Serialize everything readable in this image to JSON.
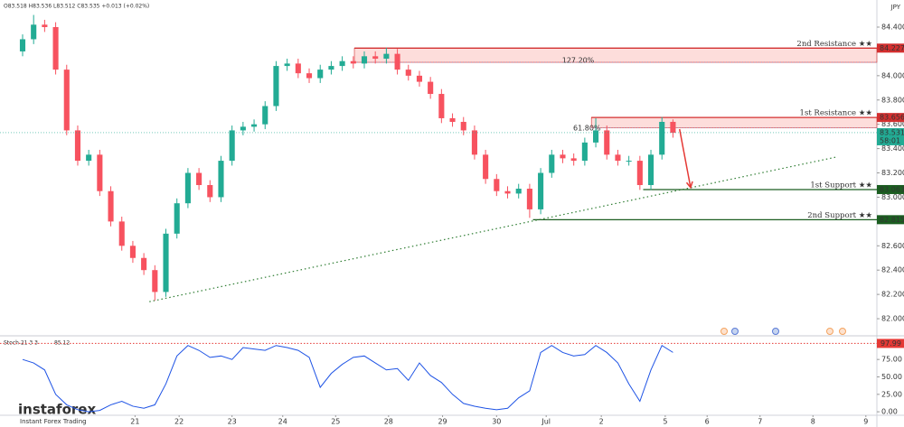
{
  "chart_data": {
    "type": "candlestick",
    "symbol_info": "O83.518 H83.536 L83.512 C83.535 +0.013 (+0.02%)",
    "currency": "JPY",
    "xlim": [
      -2.05,
      77.5
    ],
    "xticks": [
      {
        "value": 10.2,
        "label": "21"
      },
      {
        "value": 14.2,
        "label": "22"
      },
      {
        "value": 19.0,
        "label": "23"
      },
      {
        "value": 23.6,
        "label": "24"
      },
      {
        "value": 28.4,
        "label": "25"
      },
      {
        "value": 33.2,
        "label": "28"
      },
      {
        "value": 38.1,
        "label": "29"
      },
      {
        "value": 43.0,
        "label": "30"
      },
      {
        "value": 47.5,
        "label": "Jul"
      },
      {
        "value": 52.5,
        "label": "2"
      },
      {
        "value": 58.3,
        "label": "5"
      },
      {
        "value": 62.1,
        "label": "6"
      },
      {
        "value": 66.9,
        "label": "7"
      },
      {
        "value": 71.7,
        "label": "8"
      },
      {
        "value": 76.5,
        "label": "9"
      }
    ],
    "ylim": [
      81.874,
      84.623
    ],
    "yticks": [
      {
        "value": 82.0,
        "label": "82.000"
      },
      {
        "value": 82.2,
        "label": "82.200"
      },
      {
        "value": 82.4,
        "label": "82.400"
      },
      {
        "value": 82.6,
        "label": "82.600"
      },
      {
        "value": 83.0,
        "label": "83.000"
      },
      {
        "value": 83.2,
        "label": "83.200"
      },
      {
        "value": 83.4,
        "label": "83.400"
      },
      {
        "value": 83.6,
        "label": "83.600"
      },
      {
        "value": 83.8,
        "label": "83.800"
      },
      {
        "value": 84.0,
        "label": "84.000"
      },
      {
        "value": 84.4,
        "label": "84.400"
      }
    ],
    "up_color": "#22ab94",
    "down_color": "#f7525f",
    "candles": [
      [
        84.2,
        84.34,
        84.16,
        84.3
      ],
      [
        84.3,
        84.5,
        84.26,
        84.42
      ],
      [
        84.42,
        84.46,
        84.36,
        84.4
      ],
      [
        84.4,
        84.44,
        84.01,
        84.05
      ],
      [
        84.05,
        84.09,
        83.51,
        83.55
      ],
      [
        83.55,
        83.59,
        83.26,
        83.3
      ],
      [
        83.3,
        83.39,
        83.26,
        83.35
      ],
      [
        83.35,
        83.39,
        83.01,
        83.05
      ],
      [
        83.05,
        83.09,
        82.76,
        82.8
      ],
      [
        82.8,
        82.84,
        82.56,
        82.6
      ],
      [
        82.6,
        82.64,
        82.46,
        82.5
      ],
      [
        82.5,
        82.54,
        82.36,
        82.4
      ],
      [
        82.4,
        82.44,
        82.15,
        82.22
      ],
      [
        82.22,
        82.74,
        82.18,
        82.7
      ],
      [
        82.7,
        82.99,
        82.66,
        82.95
      ],
      [
        82.95,
        83.24,
        82.91,
        83.2
      ],
      [
        83.2,
        83.24,
        83.06,
        83.1
      ],
      [
        83.1,
        83.14,
        82.96,
        83.0
      ],
      [
        83.0,
        83.34,
        82.96,
        83.3
      ],
      [
        83.3,
        83.59,
        83.26,
        83.55
      ],
      [
        83.55,
        83.62,
        83.51,
        83.58
      ],
      [
        83.58,
        83.64,
        83.54,
        83.6
      ],
      [
        83.6,
        83.79,
        83.56,
        83.75
      ],
      [
        83.75,
        84.12,
        83.71,
        84.08
      ],
      [
        84.08,
        84.14,
        84.04,
        84.1
      ],
      [
        84.1,
        84.14,
        83.98,
        84.02
      ],
      [
        84.02,
        84.06,
        83.94,
        83.98
      ],
      [
        83.98,
        84.09,
        83.94,
        84.05
      ],
      [
        84.05,
        84.12,
        84.01,
        84.08
      ],
      [
        84.08,
        84.16,
        84.04,
        84.12
      ],
      [
        84.12,
        84.16,
        84.06,
        84.1
      ],
      [
        84.1,
        84.2,
        84.06,
        84.16
      ],
      [
        84.16,
        84.2,
        84.1,
        84.14
      ],
      [
        84.14,
        84.23,
        84.1,
        84.18
      ],
      [
        84.18,
        84.22,
        84.01,
        84.05
      ],
      [
        84.05,
        84.09,
        83.96,
        84.0
      ],
      [
        84.0,
        84.04,
        83.91,
        83.95
      ],
      [
        83.95,
        83.99,
        83.81,
        83.85
      ],
      [
        83.85,
        83.89,
        83.61,
        83.65
      ],
      [
        83.65,
        83.69,
        83.58,
        83.62
      ],
      [
        83.62,
        83.66,
        83.51,
        83.55
      ],
      [
        83.55,
        83.59,
        83.31,
        83.35
      ],
      [
        83.35,
        83.39,
        83.11,
        83.15
      ],
      [
        83.15,
        83.19,
        83.01,
        83.05
      ],
      [
        83.05,
        83.09,
        82.99,
        83.03
      ],
      [
        83.03,
        83.11,
        82.99,
        83.07
      ],
      [
        83.07,
        83.11,
        82.83,
        82.9
      ],
      [
        82.9,
        83.24,
        82.86,
        83.2
      ],
      [
        83.2,
        83.39,
        83.16,
        83.35
      ],
      [
        83.35,
        83.39,
        83.28,
        83.32
      ],
      [
        83.32,
        83.36,
        83.26,
        83.3
      ],
      [
        83.3,
        83.49,
        83.26,
        83.45
      ],
      [
        83.45,
        83.65,
        83.41,
        83.55
      ],
      [
        83.55,
        83.59,
        83.31,
        83.35
      ],
      [
        83.35,
        83.39,
        83.26,
        83.3
      ],
      [
        83.3,
        83.34,
        83.26,
        83.3
      ],
      [
        83.3,
        83.34,
        83.06,
        83.1
      ],
      [
        83.1,
        83.39,
        83.06,
        83.35
      ],
      [
        83.35,
        83.66,
        83.31,
        83.62
      ],
      [
        83.62,
        83.64,
        83.49,
        83.53
      ]
    ],
    "levels": [
      {
        "name": "2nd Resistance ★★",
        "value": 84.227,
        "color": "#d32f2f",
        "start": 30.1,
        "zone_low": 84.11
      },
      {
        "name": "1st Resistance ★★",
        "value": 83.656,
        "color": "#d32f2f",
        "start": 51.6,
        "zone_low": 83.57
      },
      {
        "name": "1st Support ★★",
        "value": 83.063,
        "color": "#1b5e20",
        "start": 56.3
      },
      {
        "name": "2nd Support ★★",
        "value": 82.815,
        "color": "#1b5e20",
        "start": 46.3
      }
    ],
    "fib": [
      {
        "label": "127.20%",
        "value": 84.125,
        "x": 50.4
      },
      {
        "label": "61.80%",
        "value": 83.568,
        "x": 51.2
      }
    ],
    "last_price": {
      "value": 83.531,
      "countdown": "58:01",
      "color": "#22ab94"
    },
    "trendline": {
      "points": [
        [
          11.5,
          82.14
        ],
        [
          73.8,
          83.33
        ]
      ],
      "color": "#2e7d32"
    },
    "arrow": {
      "from": [
        59.6,
        83.56
      ],
      "to": [
        60.6,
        83.08
      ],
      "color": "#e53935"
    },
    "stoch": {
      "name": "Stoch 21 3 3",
      "color": "#1e53e5",
      "ylim": [
        -5,
        105
      ],
      "yticks": [
        {
          "value": 0,
          "label": "0.00"
        },
        {
          "value": 25,
          "label": "25.00"
        },
        {
          "value": 50,
          "label": "50.00"
        },
        {
          "value": 75,
          "label": "75.00"
        }
      ],
      "overbought": 97.99,
      "values": [
        75,
        70,
        60,
        25,
        10,
        3,
        0,
        2,
        10,
        15,
        8,
        5,
        10,
        40,
        80,
        95,
        88,
        78,
        80,
        75,
        92,
        90,
        88,
        95,
        92,
        88,
        78,
        35,
        55,
        68,
        78,
        80,
        70,
        60,
        62,
        45,
        70,
        52,
        42,
        25,
        12,
        8,
        5,
        3,
        5,
        20,
        30,
        85,
        95,
        85,
        80,
        82,
        95,
        85,
        70,
        40,
        15,
        60,
        95,
        85.12
      ]
    },
    "watermark": {
      "brand": "instaforex",
      "tagline": "Instant Forex Trading"
    }
  }
}
